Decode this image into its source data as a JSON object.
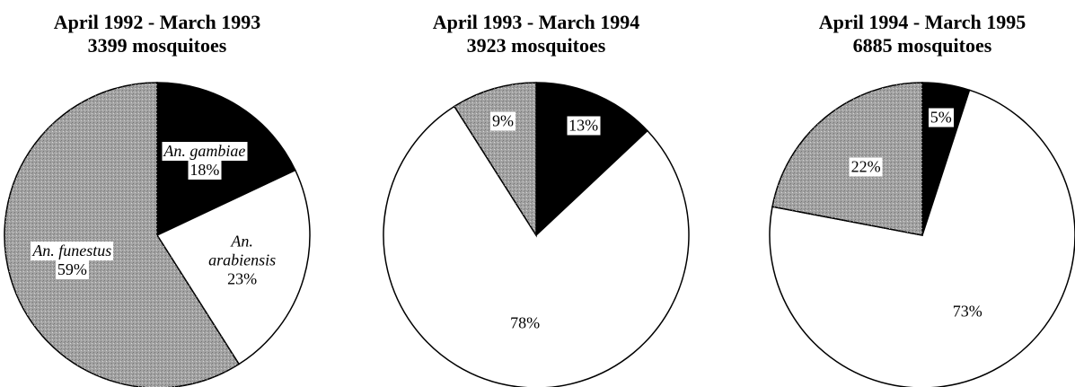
{
  "chart_data": [
    {
      "type": "pie",
      "title": "April 1992 - March 1993",
      "subtitle": "3399 mosquitoes",
      "categories": [
        "An. gambiae",
        "An. arabiensis",
        "An. funestus"
      ],
      "values": [
        18,
        23,
        59
      ],
      "value_labels": [
        "18%",
        "23%",
        "59%"
      ],
      "colors": [
        "#000000",
        "#ffffff",
        "#a3a3a3"
      ]
    },
    {
      "type": "pie",
      "title": "April 1993 - March 1994",
      "subtitle": "3923 mosquitoes",
      "categories": [
        null,
        null,
        null
      ],
      "values": [
        13,
        78,
        9
      ],
      "value_labels": [
        "13%",
        "78%",
        "9%"
      ],
      "colors": [
        "#000000",
        "#ffffff",
        "#a3a3a3"
      ]
    },
    {
      "type": "pie",
      "title": "April 1994 - March 1995",
      "subtitle": "6885 mosquitoes",
      "categories": [
        null,
        null,
        null
      ],
      "values": [
        5,
        73,
        22
      ],
      "value_labels": [
        "5%",
        "73%",
        "22%"
      ],
      "colors": [
        "#000000",
        "#ffffff",
        "#a3a3a3"
      ]
    }
  ]
}
